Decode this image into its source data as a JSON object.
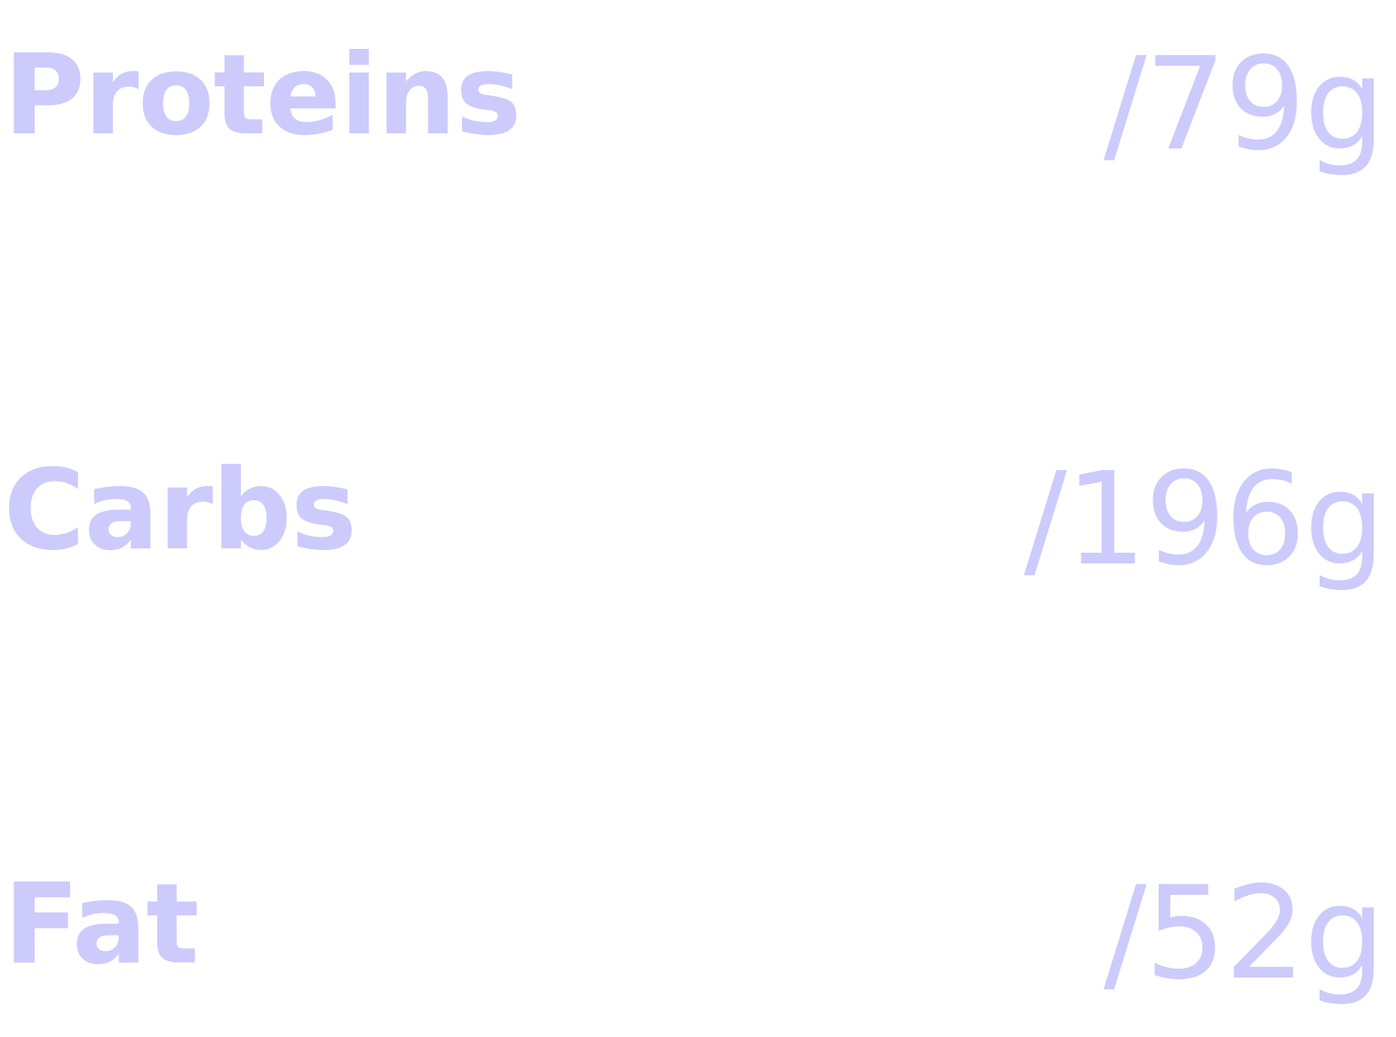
{
  "theme": {
    "label_color": "#cccbfc",
    "value_color": "#cccbfc",
    "background": "#ffffff"
  },
  "macros": [
    {
      "label": "Proteins",
      "target": "/79g"
    },
    {
      "label": "Carbs",
      "target": "/196g"
    },
    {
      "label": "Fat",
      "target": "/52g"
    }
  ]
}
